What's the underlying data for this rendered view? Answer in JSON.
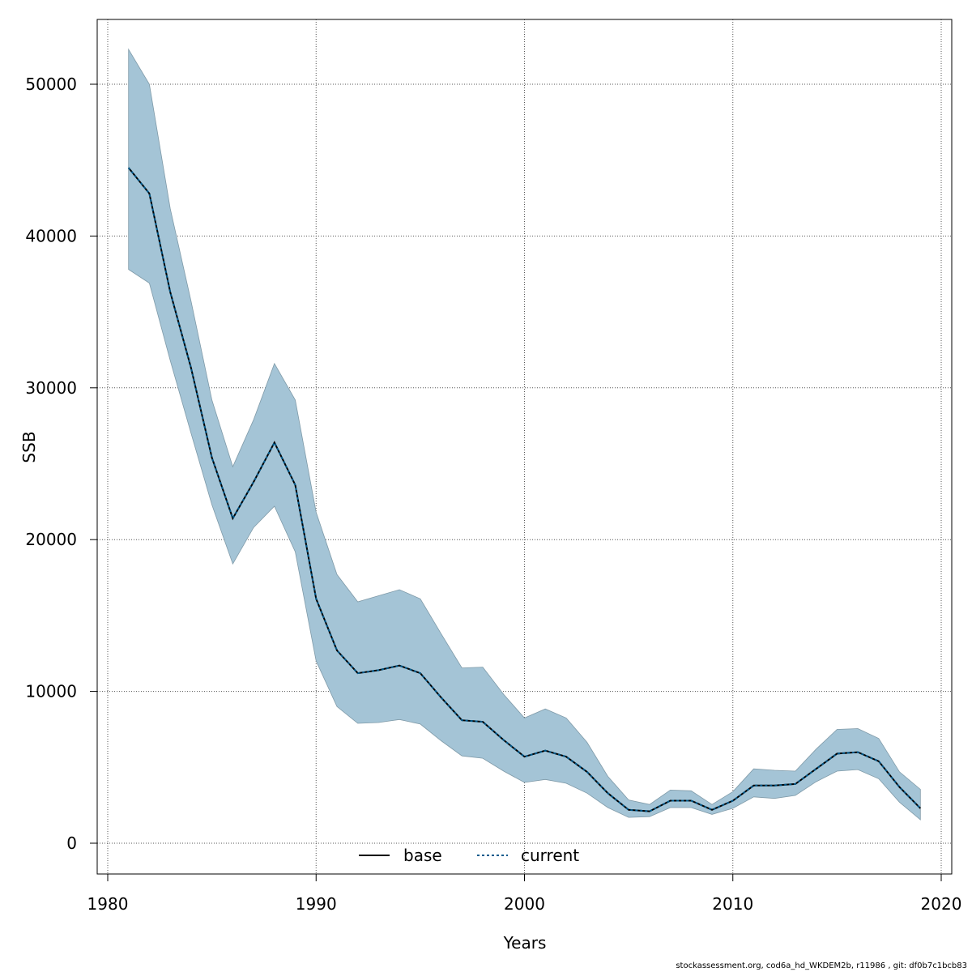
{
  "chart_data": {
    "type": "line",
    "xlabel": "Years",
    "ylabel": "SSB",
    "xlim": [
      1980,
      2020
    ],
    "ylim": [
      0,
      50000
    ],
    "x_ticks": [
      "1980",
      "1990",
      "2000",
      "2010",
      "2020"
    ],
    "y_ticks": [
      "0",
      "10000",
      "20000",
      "30000",
      "40000",
      "50000"
    ],
    "grid": true,
    "legend_position": "bottom-center",
    "x": [
      1981,
      1982,
      1983,
      1984,
      1985,
      1986,
      1987,
      1988,
      1989,
      1990,
      1991,
      1992,
      1993,
      1994,
      1995,
      1996,
      1997,
      1998,
      1999,
      2000,
      2001,
      2002,
      2003,
      2004,
      2005,
      2006,
      2007,
      2008,
      2009,
      2010,
      2011,
      2012,
      2013,
      2014,
      2015,
      2016,
      2017,
      2018,
      2019
    ],
    "band": {
      "color": "#a4c4d6",
      "lower": [
        37800,
        36900,
        31800,
        27000,
        22300,
        18400,
        20800,
        22200,
        19200,
        12000,
        9000,
        7900,
        7950,
        8150,
        7850,
        6750,
        5750,
        5600,
        4750,
        4000,
        4200,
        3950,
        3300,
        2350,
        1700,
        1750,
        2350,
        2350,
        1900,
        2300,
        3050,
        2950,
        3150,
        4050,
        4750,
        4850,
        4250,
        2700,
        1550
      ],
      "upper": [
        52300,
        50000,
        41800,
        35700,
        29200,
        24800,
        27900,
        31600,
        29200,
        21800,
        17700,
        15900,
        16300,
        16700,
        16100,
        13800,
        11550,
        11600,
        9800,
        8250,
        8850,
        8250,
        6650,
        4400,
        2850,
        2550,
        3500,
        3450,
        2550,
        3400,
        4900,
        4800,
        4750,
        6200,
        7500,
        7550,
        6900,
        4700,
        3550
      ]
    },
    "series": [
      {
        "name": "base",
        "color": "#000000",
        "values": [
          44500,
          42800,
          36300,
          31300,
          25400,
          21400,
          23800,
          26400,
          23600,
          16100,
          12700,
          11200,
          11400,
          11700,
          11200,
          9600,
          8100,
          8000,
          6800,
          5700,
          6100,
          5700,
          4700,
          3300,
          2200,
          2100,
          2800,
          2800,
          2200,
          2800,
          3800,
          3800,
          3900,
          4900,
          5900,
          6000,
          5400,
          3700,
          2300
        ]
      },
      {
        "name": "current",
        "color": "#005a8c",
        "values": [
          44500,
          42800,
          36300,
          31300,
          25400,
          21400,
          23800,
          26400,
          23600,
          16100,
          12700,
          11200,
          11400,
          11700,
          11200,
          9600,
          8100,
          8000,
          6800,
          5700,
          6100,
          5700,
          4700,
          3300,
          2200,
          2100,
          2800,
          2800,
          2200,
          2800,
          3800,
          3800,
          3900,
          4900,
          5900,
          6000,
          5400,
          3700,
          2300
        ]
      }
    ]
  },
  "footer": "stockassessment.org, cod6a_hd_WKDEM2b, r11986 , git: df0b7c1bcb83"
}
